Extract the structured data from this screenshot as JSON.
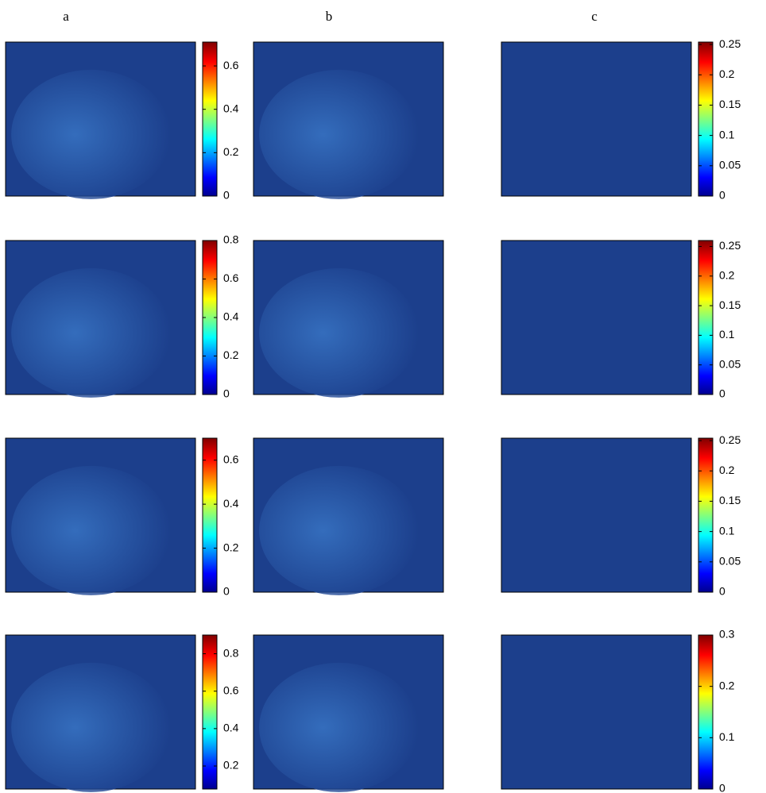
{
  "columns": [
    "a",
    "b",
    "c"
  ],
  "rows": [
    {
      "colorbar_ab": {
        "lim": [
          0,
          0.71
        ],
        "ticks": [
          0,
          0.2,
          0.4,
          0.6
        ]
      },
      "colorbar_c": {
        "lim": [
          0,
          0.254
        ],
        "ticks": [
          0,
          0.05,
          0.1,
          0.15,
          0.2,
          0.25
        ]
      }
    },
    {
      "colorbar_ab": {
        "lim": [
          0,
          0.8
        ],
        "ticks": [
          0,
          0.2,
          0.4,
          0.6,
          0.8
        ]
      },
      "colorbar_c": {
        "lim": [
          0,
          0.26
        ],
        "ticks": [
          0,
          0.05,
          0.1,
          0.15,
          0.2,
          0.25
        ]
      }
    },
    {
      "colorbar_ab": {
        "lim": [
          0,
          0.7
        ],
        "ticks": [
          0,
          0.2,
          0.4,
          0.6
        ]
      },
      "colorbar_c": {
        "lim": [
          0,
          0.254
        ],
        "ticks": [
          0,
          0.05,
          0.1,
          0.15,
          0.2,
          0.25
        ]
      }
    },
    {
      "colorbar_ab": {
        "lim": [
          0.077,
          0.9
        ],
        "ticks": [
          0.2,
          0.4,
          0.6,
          0.8
        ]
      },
      "colorbar_c": {
        "lim": [
          0,
          0.3
        ],
        "ticks": [
          0,
          0.1,
          0.2,
          0.3
        ]
      }
    }
  ]
}
